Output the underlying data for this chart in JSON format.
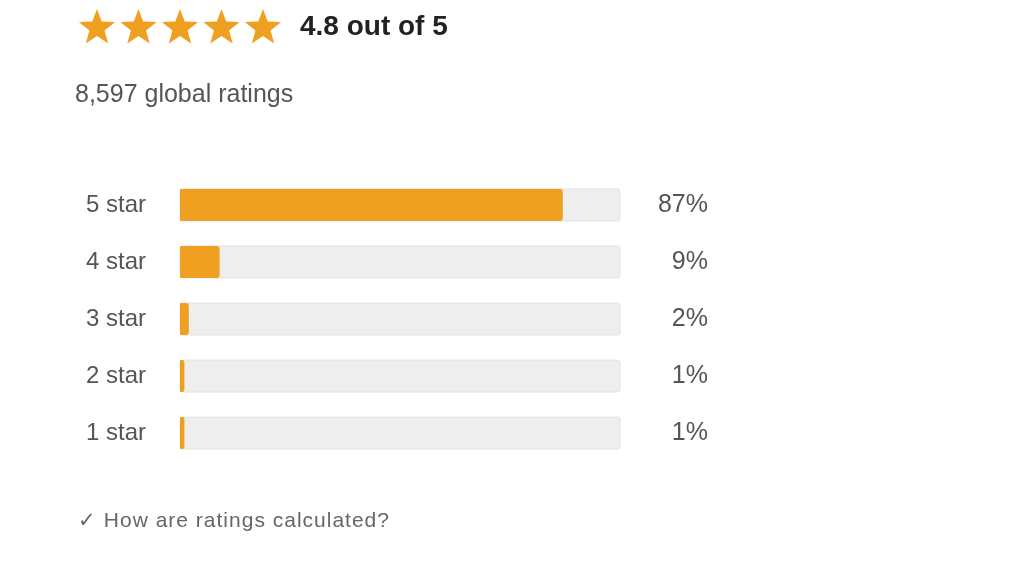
{
  "chart_data": {
    "type": "bar",
    "orientation": "horizontal",
    "title": "4.8 out of 5",
    "subtitle": "8,597 global ratings",
    "categories": [
      "5 star",
      "4 star",
      "3 star",
      "2 star",
      "1 star"
    ],
    "values": [
      87,
      9,
      2,
      1,
      1
    ],
    "value_labels": [
      "87%",
      "9%",
      "2%",
      "1%",
      "1%"
    ],
    "color": "#f0a020",
    "xlim": [
      0,
      100
    ],
    "legend": false,
    "tick_labels": "y",
    "annotations": [
      "✓ How are ratings calculated?"
    ]
  }
}
